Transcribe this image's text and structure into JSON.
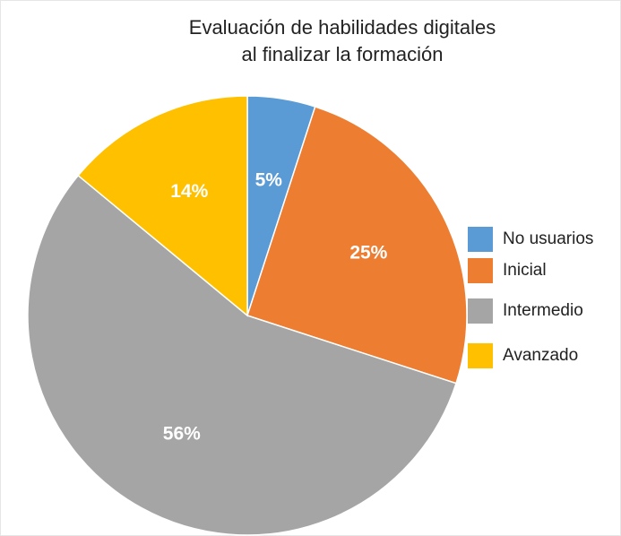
{
  "chart_data": {
    "type": "pie",
    "title": [
      "Evaluación de habilidades digitales",
      "al finalizar la formación"
    ],
    "categories": [
      "No usuarios",
      "Inicial",
      "Intermedio",
      "Avanzado"
    ],
    "values": [
      5,
      25,
      56,
      14
    ],
    "value_labels": [
      "5%",
      "25%",
      "56%",
      "14%"
    ],
    "colors": [
      "#5b9bd5",
      "#ed7d31",
      "#a5a5a5",
      "#ffc000"
    ],
    "legend": "right"
  }
}
